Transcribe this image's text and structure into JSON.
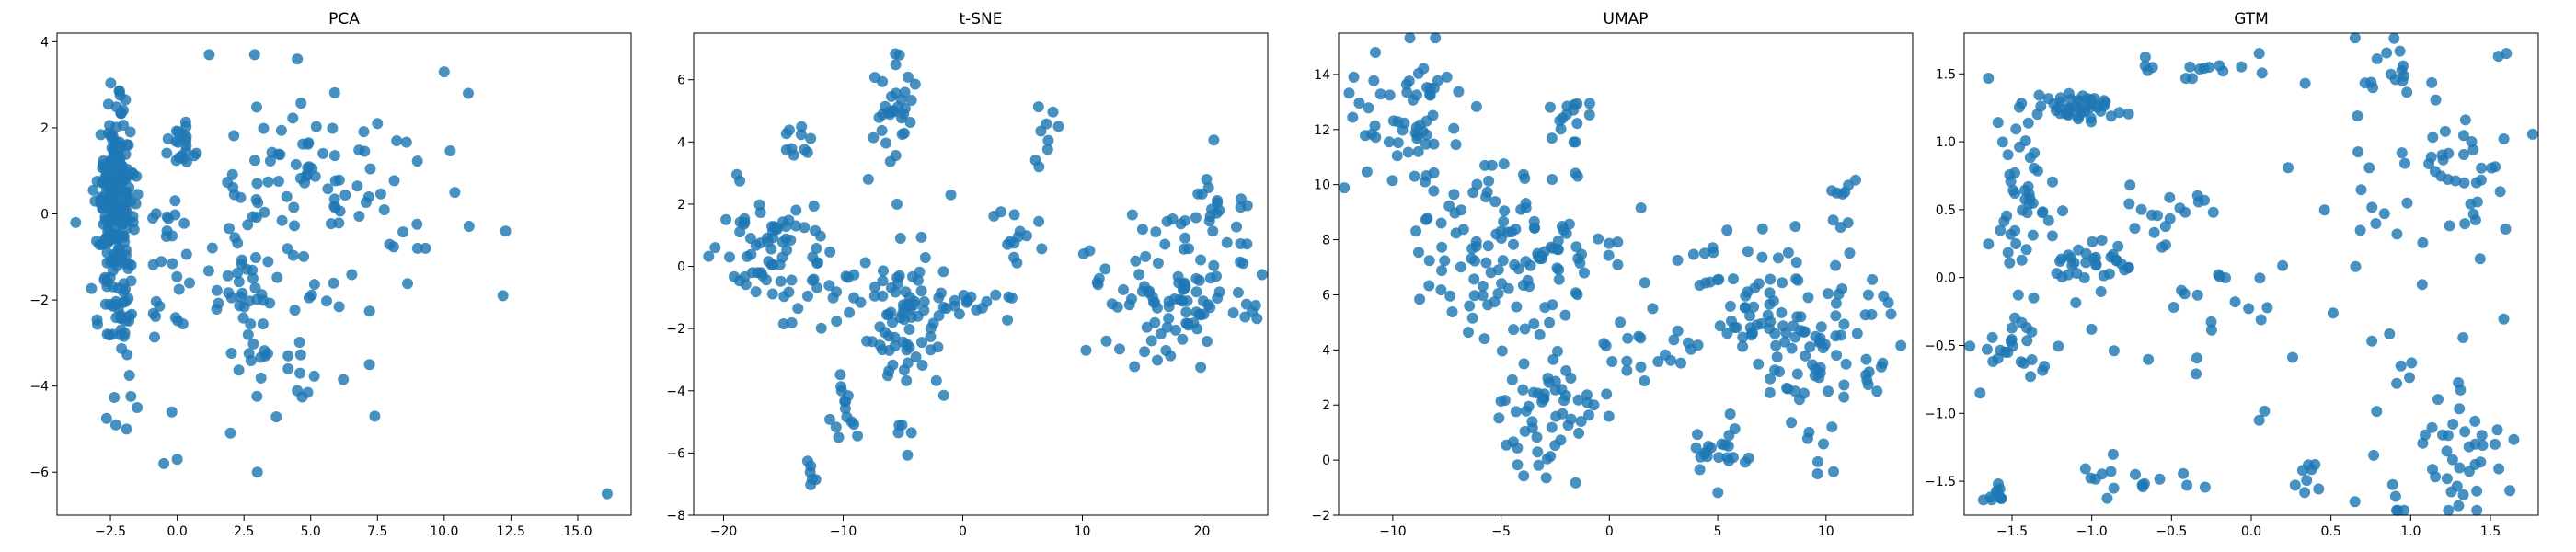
{
  "chart_data": [
    {
      "type": "scatter",
      "title": "PCA",
      "xlabel": "",
      "ylabel": "",
      "xlim": [
        -4.5,
        17
      ],
      "ylim": [
        -7,
        4.2
      ],
      "xticks": [
        -2.5,
        0.0,
        2.5,
        5.0,
        7.5,
        10.0,
        12.5,
        15.0
      ],
      "xtick_labels": [
        "−2.5",
        "0.0",
        "2.5",
        "5.0",
        "7.5",
        "10.0",
        "12.5",
        "15.0"
      ],
      "yticks": [
        -6,
        -4,
        -2,
        0,
        2,
        4
      ],
      "ytick_labels": [
        "−6",
        "−4",
        "−2",
        "0",
        "2",
        "4"
      ],
      "color": "#1f77b4",
      "clusters": [
        {
          "cx": -2.3,
          "cy": 0.3,
          "sx": 0.35,
          "sy": 1.0,
          "n": 230
        },
        {
          "cx": -2.2,
          "cy": -2.5,
          "sx": 0.35,
          "sy": 1.1,
          "n": 35
        },
        {
          "cx": -0.3,
          "cy": -1.2,
          "sx": 0.35,
          "sy": 0.9,
          "n": 25
        },
        {
          "cx": 0.3,
          "cy": 1.6,
          "sx": 0.4,
          "sy": 0.3,
          "n": 20
        },
        {
          "cx": 2.8,
          "cy": -1.2,
          "sx": 0.9,
          "sy": 1.5,
          "n": 55
        },
        {
          "cx": 5.2,
          "cy": 1.0,
          "sx": 1.4,
          "sy": 1.0,
          "n": 50
        },
        {
          "cx": 4.8,
          "cy": -2.0,
          "sx": 1.5,
          "sy": 1.3,
          "n": 30
        },
        {
          "cx": 8.5,
          "cy": 0.2,
          "sx": 1.2,
          "sy": 1.0,
          "n": 10
        }
      ],
      "points": [
        {
          "x": 16.1,
          "y": -6.5
        },
        {
          "x": 12.2,
          "y": -1.9
        },
        {
          "x": 12.3,
          "y": -0.4
        },
        {
          "x": 10.9,
          "y": 2.8
        },
        {
          "x": 10.0,
          "y": 3.3
        },
        {
          "x": 10.4,
          "y": 0.5
        },
        {
          "x": 3.0,
          "y": -6.0
        },
        {
          "x": 2.9,
          "y": 3.7
        },
        {
          "x": 4.5,
          "y": 3.6
        },
        {
          "x": 1.2,
          "y": 3.7
        },
        {
          "x": 0.0,
          "y": -5.7
        },
        {
          "x": -0.5,
          "y": -5.8
        },
        {
          "x": -1.9,
          "y": -5.0
        },
        {
          "x": -2.3,
          "y": -4.9
        },
        {
          "x": -1.5,
          "y": -4.5
        },
        {
          "x": -3.8,
          "y": -0.2
        },
        {
          "x": 7.4,
          "y": -4.7
        },
        {
          "x": 7.5,
          "y": 2.1
        },
        {
          "x": 9.0,
          "y": -0.8
        },
        {
          "x": 9.3,
          "y": -0.8
        },
        {
          "x": 7.2,
          "y": -3.5
        },
        {
          "x": 4.6,
          "y": -3.7
        },
        {
          "x": 3.3,
          "y": -3.3
        },
        {
          "x": -0.2,
          "y": -4.6
        }
      ]
    },
    {
      "type": "scatter",
      "title": "t-SNE",
      "xlabel": "",
      "ylabel": "",
      "xlim": [
        -22.5,
        25.5
      ],
      "ylim": [
        -8,
        7.5
      ],
      "xticks": [
        -20,
        -10,
        0,
        10,
        20
      ],
      "xtick_labels": [
        "−20",
        "−10",
        "0",
        "10",
        "20"
      ],
      "yticks": [
        -8,
        -6,
        -4,
        -2,
        0,
        2,
        4,
        6
      ],
      "ytick_labels": [
        "−8",
        "−6",
        "−4",
        "−2",
        "0",
        "2",
        "4",
        "6"
      ],
      "color": "#1f77b4",
      "clusters": [
        {
          "cx": -16,
          "cy": 0.6,
          "sx": 2.2,
          "sy": 1.1,
          "n": 60
        },
        {
          "cx": -4.5,
          "cy": -2.0,
          "sx": 1.6,
          "sy": 1.1,
          "n": 65
        },
        {
          "cx": -5.5,
          "cy": 5.0,
          "sx": 0.8,
          "sy": 0.9,
          "n": 30
        },
        {
          "cx": -13.5,
          "cy": 4.0,
          "sx": 0.7,
          "sy": 0.3,
          "n": 10
        },
        {
          "cx": -9.5,
          "cy": -4.5,
          "sx": 0.7,
          "sy": 0.6,
          "n": 14
        },
        {
          "cx": -12.5,
          "cy": -6.5,
          "sx": 0.4,
          "sy": 0.6,
          "n": 6
        },
        {
          "cx": -10,
          "cy": -0.9,
          "sx": 2.2,
          "sy": 0.8,
          "n": 30
        },
        {
          "cx": 0.5,
          "cy": -1.1,
          "sx": 2.0,
          "sy": 0.3,
          "n": 15
        },
        {
          "cx": 4.5,
          "cy": 1.0,
          "sx": 1.2,
          "sy": 1.0,
          "n": 14
        },
        {
          "cx": 6.7,
          "cy": 4.0,
          "sx": 0.5,
          "sy": 0.5,
          "n": 8
        },
        {
          "cx": 18,
          "cy": -1.0,
          "sx": 3.0,
          "sy": 1.2,
          "n": 90
        },
        {
          "cx": 21,
          "cy": 1.5,
          "sx": 1.5,
          "sy": 0.8,
          "n": 25
        },
        {
          "cx": -5.0,
          "cy": -5.5,
          "sx": 0.6,
          "sy": 0.4,
          "n": 5
        }
      ],
      "points": [
        {
          "x": -5.3,
          "y": 6.8
        },
        {
          "x": 10.6,
          "y": 0.5
        },
        {
          "x": 10.1,
          "y": 0.4
        },
        {
          "x": -19.8,
          "y": 1.5
        },
        {
          "x": -19.5,
          "y": 0.3
        },
        {
          "x": -7.9,
          "y": 2.8
        },
        {
          "x": 8.0,
          "y": 4.5
        },
        {
          "x": 10.3,
          "y": -2.7
        },
        {
          "x": 12.0,
          "y": -2.4
        },
        {
          "x": -5.5,
          "y": 2.0
        },
        {
          "x": -1.0,
          "y": 2.3
        }
      ]
    },
    {
      "type": "scatter",
      "title": "UMAP",
      "xlabel": "",
      "ylabel": "",
      "xlim": [
        -12.5,
        14
      ],
      "ylim": [
        -2,
        15.5
      ],
      "xticks": [
        -10,
        -5,
        0,
        5,
        10
      ],
      "xtick_labels": [
        "−10",
        "−5",
        "0",
        "5",
        "10"
      ],
      "yticks": [
        -2,
        0,
        2,
        4,
        6,
        8,
        10,
        12,
        14
      ],
      "ytick_labels": [
        "−2",
        "0",
        "2",
        "4",
        "6",
        "8",
        "10",
        "12",
        "14"
      ],
      "color": "#1f77b4",
      "clusters": [
        {
          "cx": -9.5,
          "cy": 12.0,
          "sx": 1.3,
          "sy": 1.3,
          "n": 60
        },
        {
          "cx": -6.0,
          "cy": 7.5,
          "sx": 1.5,
          "sy": 1.6,
          "n": 70
        },
        {
          "cx": -2.5,
          "cy": 7.0,
          "sx": 1.4,
          "sy": 1.8,
          "n": 50
        },
        {
          "cx": -3.0,
          "cy": 2.0,
          "sx": 1.4,
          "sy": 1.3,
          "n": 55
        },
        {
          "cx": -2.0,
          "cy": 12.0,
          "sx": 0.7,
          "sy": 0.7,
          "n": 14
        },
        {
          "cx": 1.5,
          "cy": 3.5,
          "sx": 1.5,
          "sy": 1.2,
          "n": 20
        },
        {
          "cx": 5.0,
          "cy": 0.2,
          "sx": 0.8,
          "sy": 0.6,
          "n": 22
        },
        {
          "cx": 6.5,
          "cy": 5.5,
          "sx": 1.6,
          "sy": 1.5,
          "n": 60
        },
        {
          "cx": 10.0,
          "cy": 4.0,
          "sx": 1.6,
          "sy": 2.0,
          "n": 75
        },
        {
          "cx": 10.8,
          "cy": 9.8,
          "sx": 0.5,
          "sy": 0.5,
          "n": 8
        }
      ],
      "points": [
        {
          "x": -11.8,
          "y": 13.9
        },
        {
          "x": -10.8,
          "y": 14.8
        },
        {
          "x": -7.5,
          "y": 13.9
        },
        {
          "x": 0.5,
          "y": 5.0
        },
        {
          "x": 2.0,
          "y": 5.5
        },
        {
          "x": 13.0,
          "y": 5.3
        }
      ]
    },
    {
      "type": "scatter",
      "title": "GTM",
      "xlabel": "",
      "ylabel": "",
      "xlim": [
        -1.8,
        1.8
      ],
      "ylim": [
        -1.75,
        1.8
      ],
      "xticks": [
        -1.5,
        -1.0,
        -0.5,
        0.0,
        0.5,
        1.0,
        1.5
      ],
      "xtick_labels": [
        "−1.5",
        "−1.0",
        "−0.5",
        "0.0",
        "0.5",
        "1.0",
        "1.5"
      ],
      "yticks": [
        -1.5,
        -1.0,
        -0.5,
        0.0,
        0.5,
        1.0,
        1.5
      ],
      "ytick_labels": [
        "−1.5",
        "−1.0",
        "−0.5",
        "0.0",
        "0.5",
        "1.0",
        "1.5"
      ],
      "color": "#1f77b4",
      "clusters": [
        {
          "cx": -1.1,
          "cy": 1.25,
          "sx": 0.15,
          "sy": 0.05,
          "n": 45
        },
        {
          "cx": -1.45,
          "cy": 0.6,
          "sx": 0.1,
          "sy": 0.35,
          "n": 40
        },
        {
          "cx": -1.0,
          "cy": 0.1,
          "sx": 0.2,
          "sy": 0.08,
          "n": 35
        },
        {
          "cx": -1.5,
          "cy": -0.5,
          "sx": 0.1,
          "sy": 0.15,
          "n": 25
        },
        {
          "cx": -1.6,
          "cy": -1.6,
          "sx": 0.05,
          "sy": 0.05,
          "n": 10
        },
        {
          "cx": -0.5,
          "cy": 0.5,
          "sx": 0.15,
          "sy": 0.1,
          "n": 12
        },
        {
          "cx": -0.4,
          "cy": 1.55,
          "sx": 0.3,
          "sy": 0.05,
          "n": 15
        },
        {
          "cx": -0.5,
          "cy": -1.5,
          "sx": 0.15,
          "sy": 0.05,
          "n": 8
        },
        {
          "cx": -0.9,
          "cy": -1.5,
          "sx": 0.1,
          "sy": 0.1,
          "n": 8
        },
        {
          "cx": 0.35,
          "cy": -1.45,
          "sx": 0.03,
          "sy": 0.1,
          "n": 8
        },
        {
          "cx": 0.85,
          "cy": 0.6,
          "sx": 0.15,
          "sy": 0.7,
          "n": 25
        },
        {
          "cx": 1.35,
          "cy": 0.8,
          "sx": 0.15,
          "sy": 0.3,
          "n": 35
        },
        {
          "cx": 1.2,
          "cy": -1.3,
          "sx": 0.25,
          "sy": 0.25,
          "n": 45
        },
        {
          "cx": 0.9,
          "cy": 1.5,
          "sx": 0.1,
          "sy": 0.1,
          "n": 12
        },
        {
          "cx": -0.2,
          "cy": -0.1,
          "sx": 0.5,
          "sy": 0.5,
          "n": 35
        }
      ],
      "points": [
        {
          "x": 1.6,
          "y": 1.65
        },
        {
          "x": 1.55,
          "y": 1.63
        },
        {
          "x": 0.05,
          "y": 1.65
        },
        {
          "x": -1.7,
          "y": -0.85
        },
        {
          "x": 0.65,
          "y": -1.65
        },
        {
          "x": 0.05,
          "y": -1.05
        }
      ]
    }
  ]
}
